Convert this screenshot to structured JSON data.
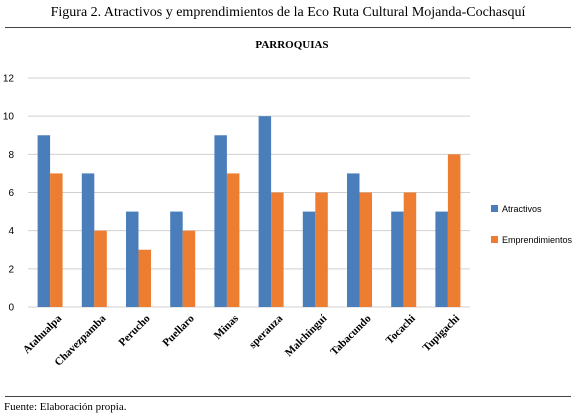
{
  "caption": "Figura 2. Atractivos y emprendimientos de la Eco Ruta Cultural Mojanda-Cochasquí",
  "source": "Fuente: Elaboración propia.",
  "chart_data": {
    "type": "bar",
    "title": "PARROQUIAS",
    "xlabel": "",
    "ylabel": "",
    "categories": [
      "Atahualpa",
      "Chavezpamba",
      "Perucho",
      "Puellaro",
      "Minas",
      "sperauza",
      "Malchinguí",
      "Tabacundo",
      "Tocachi",
      "Tupigachi"
    ],
    "series": [
      {
        "name": "Atractivos",
        "color": "#4a7ebb",
        "values": [
          9,
          7,
          5,
          5,
          9,
          10,
          5,
          7,
          5,
          5
        ]
      },
      {
        "name": "Emprendimientos",
        "color": "#ed7d31",
        "values": [
          7,
          4,
          3,
          4,
          7,
          6,
          6,
          6,
          6,
          8
        ]
      }
    ],
    "ylim": [
      0,
      12
    ],
    "yticks": [
      0,
      2,
      4,
      6,
      8,
      10,
      12
    ],
    "grid": true,
    "legend": "right"
  }
}
